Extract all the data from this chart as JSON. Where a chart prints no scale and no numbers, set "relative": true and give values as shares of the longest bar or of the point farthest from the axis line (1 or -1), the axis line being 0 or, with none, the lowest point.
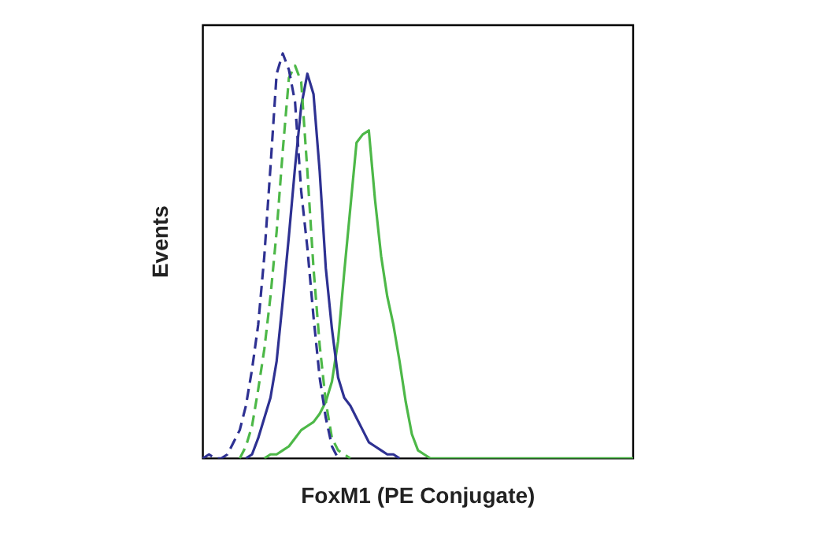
{
  "chart_data": {
    "type": "line",
    "xlabel": "FoxM1 (PE Conjugate)",
    "ylabel": "Events",
    "relative": true,
    "categories": [
      null,
      null,
      null,
      null,
      null,
      null,
      null,
      null,
      null,
      null,
      null,
      null,
      null,
      null,
      null,
      null,
      null,
      null,
      null,
      null,
      null,
      null,
      null,
      null,
      null,
      null,
      null,
      null,
      null,
      null,
      null,
      null,
      null,
      null,
      null,
      null,
      null,
      null,
      null,
      null,
      null,
      null,
      null,
      null,
      null,
      null,
      null,
      null,
      null,
      null,
      null,
      null,
      null,
      null,
      null,
      null,
      null,
      null,
      null,
      null,
      null,
      null,
      null,
      null,
      null,
      null,
      null,
      null,
      null,
      null,
      null
    ],
    "series": [
      {
        "color": "#2e3192",
        "line_style": "dashed",
        "values": [
          0,
          0.01,
          0,
          0,
          0.01,
          0.04,
          0.07,
          0.13,
          0.22,
          0.33,
          0.5,
          0.72,
          0.95,
          1,
          0.96,
          0.88,
          0.66,
          0.52,
          0.35,
          0.2,
          0.1,
          0.03,
          0,
          null,
          null,
          null,
          null,
          null,
          null,
          null,
          null,
          null,
          null,
          null,
          null,
          null,
          null,
          null,
          null,
          null,
          null,
          null,
          null,
          null,
          null,
          null,
          null,
          null,
          null,
          null,
          null,
          null,
          null,
          null,
          null,
          null,
          null,
          null,
          null,
          null,
          null,
          null,
          null,
          null,
          null,
          null,
          null,
          null,
          null,
          null,
          null
        ]
      },
      {
        "color": "#4db848",
        "line_style": "dashed",
        "values": [
          null,
          null,
          null,
          null,
          null,
          null,
          0,
          0.03,
          0.08,
          0.17,
          0.27,
          0.4,
          0.56,
          0.76,
          0.94,
          0.97,
          0.93,
          0.71,
          0.47,
          0.28,
          0.14,
          0.05,
          0.02,
          0.01,
          0,
          null,
          null,
          null,
          null,
          null,
          null,
          null,
          null,
          null,
          null,
          null,
          null,
          null,
          null,
          null,
          null,
          null,
          null,
          null,
          null,
          null,
          null,
          null,
          null,
          null,
          null,
          null,
          null,
          null,
          null,
          null,
          null,
          null,
          null,
          null,
          null,
          null,
          null,
          null,
          null,
          null,
          null,
          null,
          null,
          null,
          null
        ]
      },
      {
        "color": "#2e3192",
        "line_style": "solid",
        "values": [
          null,
          null,
          null,
          null,
          null,
          null,
          null,
          0,
          0.01,
          0.05,
          0.1,
          0.15,
          0.24,
          0.39,
          0.55,
          0.72,
          0.87,
          0.95,
          0.9,
          0.71,
          0.47,
          0.32,
          0.2,
          0.15,
          0.13,
          0.1,
          0.07,
          0.04,
          0.03,
          0.02,
          0.01,
          0.01,
          0,
          null,
          null,
          null,
          null,
          null,
          null,
          null,
          null,
          null,
          null,
          null,
          null,
          null,
          null,
          null,
          null,
          null,
          null,
          null,
          null,
          null,
          null,
          null,
          null,
          null,
          null,
          null,
          null,
          null,
          null,
          null,
          null,
          null,
          null,
          null,
          null,
          null,
          null
        ]
      },
      {
        "color": "#4db848",
        "line_style": "solid",
        "values": [
          null,
          null,
          null,
          null,
          null,
          null,
          null,
          null,
          null,
          null,
          0,
          0.01,
          0.01,
          0.02,
          0.03,
          0.05,
          0.07,
          0.08,
          0.09,
          0.11,
          0.14,
          0.19,
          0.29,
          0.46,
          0.62,
          0.78,
          0.8,
          0.81,
          0.64,
          0.5,
          0.4,
          0.33,
          0.24,
          0.14,
          0.06,
          0.02,
          0.01,
          0,
          0,
          0,
          0,
          0,
          0,
          0,
          0,
          0,
          0,
          0,
          0,
          0,
          0,
          0,
          0,
          0,
          0,
          0,
          0,
          0,
          0,
          0,
          0,
          0,
          0,
          0,
          0,
          0,
          0,
          0,
          0,
          0,
          0
        ]
      }
    ]
  }
}
